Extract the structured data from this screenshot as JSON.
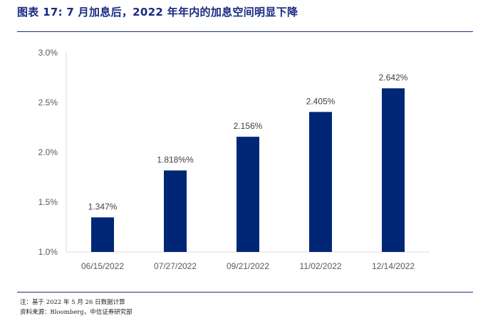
{
  "header": {
    "title": "图表 17: 7 月加息后，2022 年年内的加息空间明显下降"
  },
  "footer": {
    "note": "注：基于 2022 年 5 月 26 日数据计算",
    "source": "资料来源：Bloomberg，中信证券研究部"
  },
  "colors": {
    "bar": "#002776",
    "rule": "#1a2a80",
    "title": "#1a2a80"
  },
  "chart_data": {
    "type": "bar",
    "title": "",
    "xlabel": "",
    "ylabel": "",
    "categories": [
      "06/15/2022",
      "07/27/2022",
      "09/21/2022",
      "11/02/2022",
      "12/14/2022"
    ],
    "values": [
      1.347,
      1.818,
      2.156,
      2.405,
      2.642
    ],
    "data_labels": [
      "1.347%",
      "1.818%%",
      "2.156%",
      "2.405%",
      "2.642%"
    ],
    "ylim": [
      1.0,
      3.0
    ],
    "yticks": [
      1.0,
      1.5,
      2.0,
      2.5,
      3.0
    ],
    "ytick_labels": [
      "1.0%",
      "1.5%",
      "2.0%",
      "2.5%",
      "3.0%"
    ],
    "grid": false,
    "legend": "none"
  }
}
